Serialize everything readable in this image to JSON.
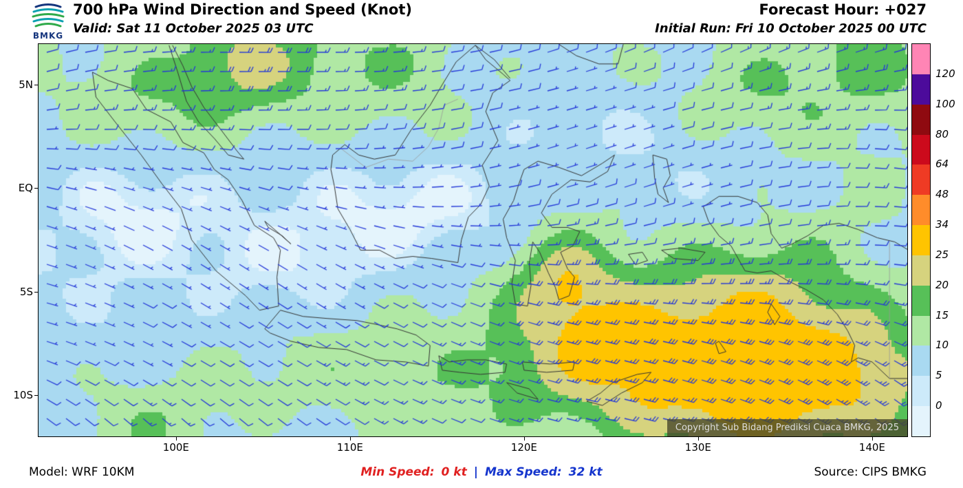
{
  "header": {
    "logo_text": "BMKG",
    "title": "700 hPa Wind Direction and Speed (Knot)",
    "valid_line": "Valid: Sat 11 October 2025 03 UTC",
    "forecast_hour": "Forecast Hour: +027",
    "initial_run": "Initial Run: Fri 10 October 2025 00 UTC"
  },
  "map": {
    "copyright": "Copyright Sub Bidang Prediksi Cuaca BMKG, 2025",
    "lat_ticks": [
      {
        "label": "5N",
        "lat": 5
      },
      {
        "label": "EQ",
        "lat": 0
      },
      {
        "label": "5S",
        "lat": -5
      },
      {
        "label": "10S",
        "lat": -10
      }
    ],
    "lon_ticks": [
      {
        "label": "100E",
        "lon": 100
      },
      {
        "label": "110E",
        "lon": 110
      },
      {
        "label": "120E",
        "lon": 120
      },
      {
        "label": "130E",
        "lon": 130
      },
      {
        "label": "140E",
        "lon": 140
      }
    ],
    "barb_color": "#2438d8",
    "coast_color": "#333333",
    "border_color": "#999999"
  },
  "colorbar": {
    "unit": "knot",
    "labels_bottom_to_top": [
      "0",
      "5",
      "10",
      "15",
      "20",
      "25",
      "34",
      "48",
      "64",
      "80",
      "100",
      "120"
    ],
    "bands_bottom_to_top": [
      "#e4f4fc",
      "#cdeafa",
      "#a9d9f1",
      "#b0e8a4",
      "#57c058",
      "#d6d37e",
      "#ffc400",
      "#ff8c2a",
      "#ef3b24",
      "#cc0a1c",
      "#8f0a10",
      "#4c0b9b",
      "#ff85b5"
    ]
  },
  "footer": {
    "model": "Model: WRF 10KM",
    "min_label": "Min Speed:",
    "min_value": "0 kt",
    "divider": "|",
    "max_label": "Max Speed:",
    "max_value": "32 kt",
    "source": "Source: CIPS BMKG"
  },
  "chart_data": {
    "type": "heatmap",
    "title": "700 hPa Wind Direction and Speed (Knot)",
    "speed_scale_knots": [
      0,
      5,
      10,
      15,
      20,
      25,
      34,
      48,
      64,
      80,
      100,
      120
    ],
    "min_speed_kt": 0,
    "max_speed_kt": 32,
    "legend_position": "right"
  }
}
